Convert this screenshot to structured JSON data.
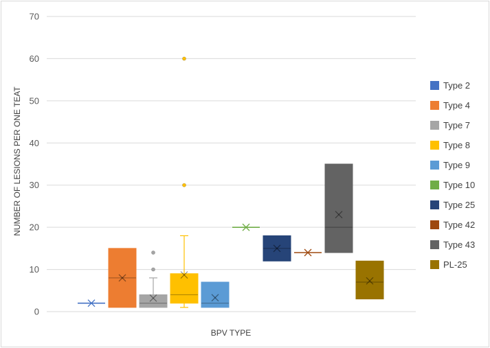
{
  "chart_data": {
    "type": "box",
    "xlabel": "BPV TYPE",
    "ylabel": "NUMBER OF LESIONS PER ONE TEAT",
    "ylim": [
      0,
      70
    ],
    "yticks": [
      "0",
      "10",
      "20",
      "30",
      "40",
      "50",
      "60",
      "70"
    ],
    "grid": true,
    "legend_position": "right",
    "series": [
      {
        "name": "Type 2",
        "color": "#4472c4",
        "min": 2,
        "q1": 2,
        "median": 2,
        "q3": 2,
        "max": 2,
        "mean": 2,
        "outliers": []
      },
      {
        "name": "Type 4",
        "color": "#ed7d31",
        "min": 1,
        "q1": 1,
        "median": 8,
        "q3": 15,
        "max": 15,
        "mean": 8,
        "outliers": []
      },
      {
        "name": "Type 7",
        "color": "#a5a5a5",
        "min": 1,
        "q1": 1,
        "median": 2,
        "q3": 4,
        "max": 8,
        "mean": 3.2,
        "outliers": [
          10,
          14
        ]
      },
      {
        "name": "Type 8",
        "color": "#ffc000",
        "min": 1,
        "q1": 2,
        "median": 4,
        "q3": 9,
        "max": 18,
        "mean": 8.7,
        "outliers": [
          30,
          60
        ]
      },
      {
        "name": "Type 9",
        "color": "#5b9bd5",
        "min": 1,
        "q1": 1,
        "median": 2,
        "q3": 7,
        "max": 7,
        "mean": 3.3,
        "outliers": []
      },
      {
        "name": "Type 10",
        "color": "#70ad47",
        "min": 20,
        "q1": 20,
        "median": 20,
        "q3": 20,
        "max": 20,
        "mean": 20,
        "outliers": []
      },
      {
        "name": "Type 25",
        "color": "#264478",
        "min": 12,
        "q1": 12,
        "median": 15,
        "q3": 18,
        "max": 18,
        "mean": 15,
        "outliers": []
      },
      {
        "name": "Type 42",
        "color": "#9e480e",
        "min": 14,
        "q1": 14,
        "median": 14,
        "q3": 14,
        "max": 14,
        "mean": 14,
        "outliers": []
      },
      {
        "name": "Type 43",
        "color": "#636363",
        "min": 14,
        "q1": 14,
        "median": 20,
        "q3": 35,
        "max": 35,
        "mean": 23,
        "outliers": []
      },
      {
        "name": "PL-25",
        "color": "#997300",
        "min": 3,
        "q1": 3,
        "median": 7,
        "q3": 12,
        "max": 12,
        "mean": 7.3,
        "outliers": []
      }
    ]
  }
}
